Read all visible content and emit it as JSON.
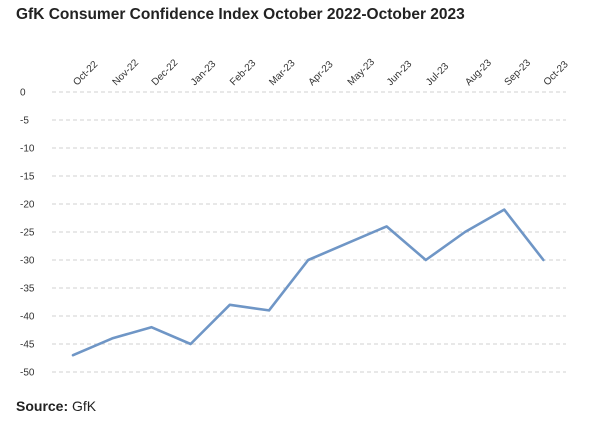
{
  "chart_data": {
    "type": "line",
    "title": "GfK Consumer Confidence Index October 2022-October 2023",
    "categories": [
      "Oct-22",
      "Nov-22",
      "Dec-22",
      "Jan-23",
      "Feb-23",
      "Mar-23",
      "Apr-23",
      "May-23",
      "Jun-23",
      "Jul-23",
      "Aug-23",
      "Sep-23",
      "Oct-23"
    ],
    "series": [
      {
        "values": [
          -47,
          -44,
          -42,
          -45,
          -38,
          -39,
          -30,
          -27,
          -24,
          -30,
          -25,
          -21,
          -30
        ]
      }
    ],
    "yticks": [
      0,
      -5,
      -10,
      -15,
      -20,
      -25,
      -30,
      -35,
      -40,
      -45,
      -50
    ],
    "ylim": [
      -50,
      0
    ],
    "xlabel": "",
    "ylabel": "",
    "x_axis_position": "top",
    "grid": true,
    "colors": {
      "line": "#6f96c6",
      "grid": "#d0d0d0"
    }
  },
  "source": {
    "label": "Source:",
    "value": "GfK"
  }
}
